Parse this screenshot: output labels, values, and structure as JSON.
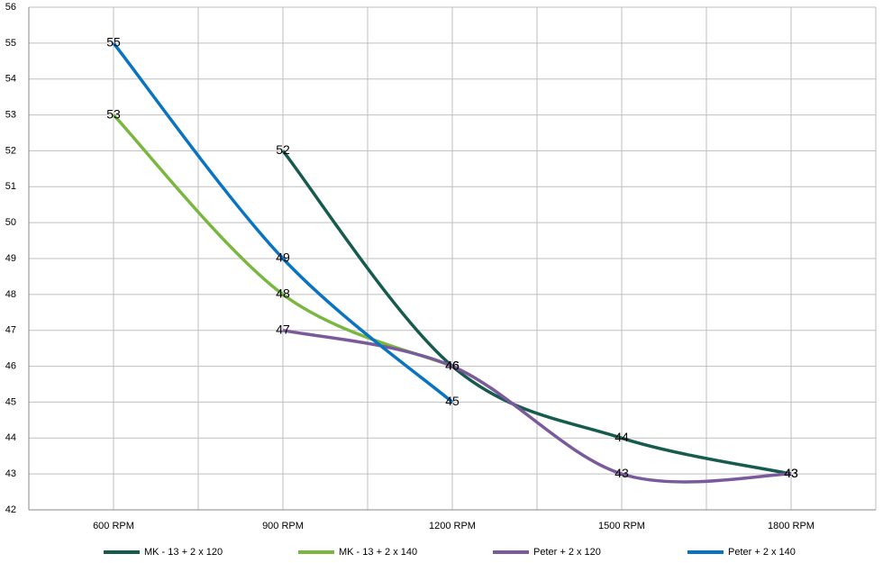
{
  "chart_data": {
    "type": "line",
    "categories": [
      "600 RPM",
      "900 RPM",
      "1200 RPM",
      "1500 RPM",
      "1800 RPM"
    ],
    "series": [
      {
        "name": "MK - 13 + 2 x 120",
        "color": "#175b4f",
        "values": [
          null,
          52,
          46,
          44,
          43
        ]
      },
      {
        "name": "MK - 13 + 2 x 140",
        "color": "#7ab740",
        "values": [
          53,
          48,
          46,
          null,
          null
        ]
      },
      {
        "name": "Peter + 2 x 120",
        "color": "#7a5a9b",
        "values": [
          null,
          47,
          46,
          43,
          43
        ]
      },
      {
        "name": "Peter + 2 x 140",
        "color": "#0b74c1",
        "values": [
          55,
          49,
          45,
          null,
          null
        ]
      }
    ],
    "ylim": [
      42,
      56
    ],
    "yticks": [
      42,
      43,
      44,
      45,
      46,
      47,
      48,
      49,
      50,
      51,
      52,
      53,
      54,
      55,
      56
    ],
    "grid": true,
    "data_labels": true,
    "smooth": true,
    "legend": "bottom"
  }
}
